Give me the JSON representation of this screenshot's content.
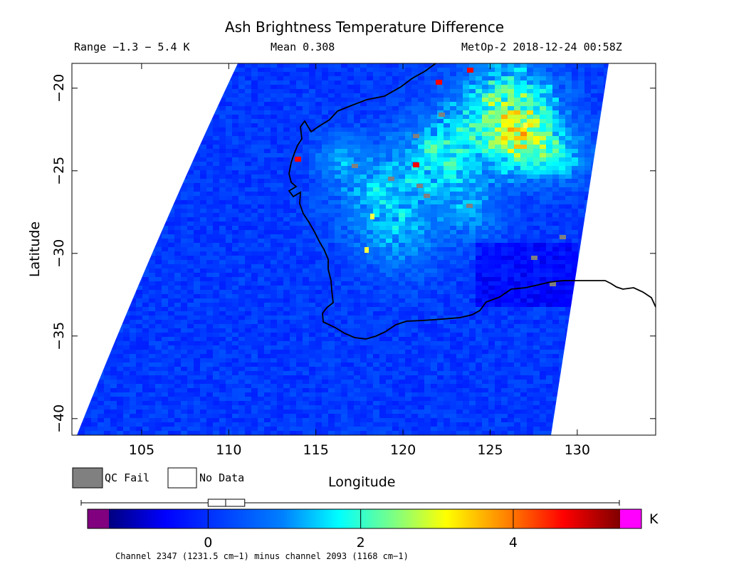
{
  "header": {
    "title": "Ash Brightness Temperature Difference",
    "range": "Range −1.3 − 5.4 K",
    "mean": "Mean 0.308",
    "satellite_time": "MetOp-2 2018-12-24 00:58Z"
  },
  "map": {
    "x_axis": {
      "label": "Longitude",
      "range": [
        101,
        134.5
      ],
      "ticks": [
        105,
        110,
        115,
        120,
        125,
        130
      ]
    },
    "y_axis": {
      "label": "Latitude",
      "range": [
        -41,
        -18.5
      ],
      "ticks": [
        -20,
        -25,
        -30,
        -35,
        -40
      ]
    },
    "tick_labels_x": [
      "105",
      "110",
      "115",
      "120",
      "125",
      "130"
    ],
    "tick_labels_y": [
      "−20",
      "−25",
      "−30",
      "−35",
      "−40"
    ],
    "coastline_color": "#000000"
  },
  "legend": {
    "qc_fail": {
      "label": "QC Fail",
      "color": "#808080"
    },
    "no_data": {
      "label": "No Data",
      "color": "#ffffff"
    }
  },
  "colorbar": {
    "unit": "K",
    "min": -1.3,
    "max": 5.4,
    "ticks": [
      0,
      2,
      4
    ],
    "tick_labels": [
      "0",
      "2",
      "4"
    ],
    "under_color": "#800080",
    "over_color": "#ff00ff",
    "boxplot": {
      "whisker_low": -1.3,
      "q1": 0.0,
      "median": 0.23,
      "q3": 0.48,
      "whisker_high": 5.4
    },
    "footnote": "Channel 2347 (1231.5 cm−1) minus channel 2093 (1168 cm−1)"
  }
}
